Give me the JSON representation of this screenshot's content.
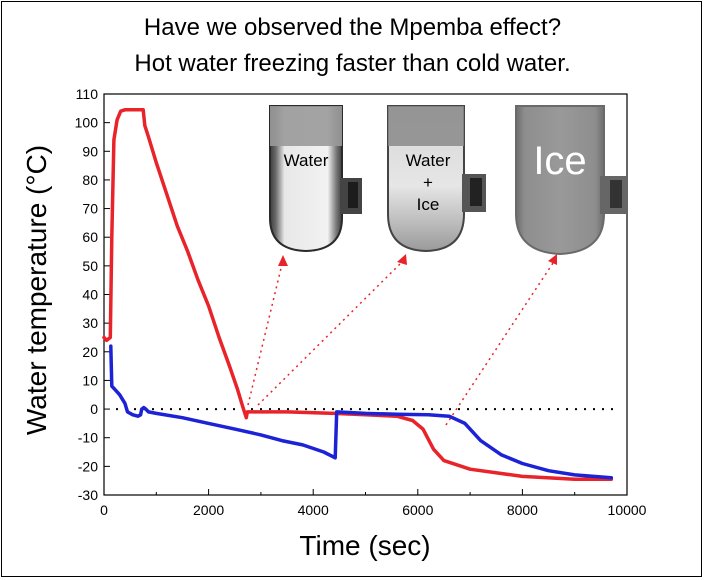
{
  "title_line1": "Have we observed the Mpemba effect?",
  "title_line2": "Hot water freezing faster than cold water.",
  "chart_data": {
    "type": "line",
    "xlabel": "Time (sec)",
    "ylabel": "Water temperature (°C)",
    "xlim": [
      0,
      10000
    ],
    "ylim": [
      -30,
      110
    ],
    "xticks": [
      0,
      2000,
      4000,
      6000,
      8000,
      10000
    ],
    "yticks": [
      -30,
      -20,
      -10,
      0,
      10,
      20,
      30,
      40,
      50,
      60,
      70,
      80,
      90,
      100,
      110
    ],
    "grid": false,
    "reference_line": {
      "y": 0,
      "style": "dotted"
    },
    "series": [
      {
        "color": "#e8232a",
        "points": [
          [
            0,
            25
          ],
          [
            50,
            24
          ],
          [
            120,
            25
          ],
          [
            150,
            60
          ],
          [
            190,
            94
          ],
          [
            250,
            101
          ],
          [
            320,
            104
          ],
          [
            400,
            104.5
          ],
          [
            550,
            104.5
          ],
          [
            750,
            104.5
          ],
          [
            780,
            99
          ],
          [
            850,
            95
          ],
          [
            1000,
            86
          ],
          [
            1200,
            75
          ],
          [
            1400,
            64
          ],
          [
            1600,
            55
          ],
          [
            1800,
            45
          ],
          [
            2000,
            36
          ],
          [
            2200,
            25
          ],
          [
            2400,
            15
          ],
          [
            2550,
            7
          ],
          [
            2650,
            1
          ],
          [
            2720,
            -3
          ],
          [
            2740,
            -1
          ],
          [
            2800,
            -1
          ],
          [
            3500,
            -1
          ],
          [
            4400,
            -1.5
          ],
          [
            5000,
            -2
          ],
          [
            5600,
            -2.5
          ],
          [
            5900,
            -4
          ],
          [
            6100,
            -7
          ],
          [
            6300,
            -14
          ],
          [
            6500,
            -18
          ],
          [
            7000,
            -21
          ],
          [
            8000,
            -23.5
          ],
          [
            9000,
            -24.5
          ],
          [
            9700,
            -24.5
          ]
        ]
      },
      {
        "color": "#1c22d6",
        "points": [
          [
            130,
            22
          ],
          [
            150,
            8
          ],
          [
            200,
            7
          ],
          [
            300,
            5
          ],
          [
            400,
            2
          ],
          [
            450,
            -1
          ],
          [
            550,
            -2
          ],
          [
            650,
            -2.5
          ],
          [
            700,
            -2
          ],
          [
            720,
            0
          ],
          [
            760,
            0.5
          ],
          [
            800,
            0
          ],
          [
            850,
            -1
          ],
          [
            1000,
            -1.5
          ],
          [
            1500,
            -3
          ],
          [
            2000,
            -5
          ],
          [
            2500,
            -7
          ],
          [
            3000,
            -9
          ],
          [
            3400,
            -11
          ],
          [
            3800,
            -12.5
          ],
          [
            4200,
            -15
          ],
          [
            4420,
            -17
          ],
          [
            4450,
            -1
          ],
          [
            5000,
            -1.5
          ],
          [
            5600,
            -1.8
          ],
          [
            6200,
            -2
          ],
          [
            6600,
            -2.5
          ],
          [
            6900,
            -5
          ],
          [
            7200,
            -11
          ],
          [
            7600,
            -16
          ],
          [
            8000,
            -19
          ],
          [
            8500,
            -21.5
          ],
          [
            9000,
            -23
          ],
          [
            9700,
            -24
          ]
        ]
      }
    ]
  },
  "tubes": [
    {
      "label_lines": [
        "Water"
      ],
      "icon": "test-tube-water-photo"
    },
    {
      "label_lines": [
        "Water",
        "+",
        "Ice"
      ],
      "icon": "test-tube-water-ice-photo"
    },
    {
      "label_lines": [
        "Ice"
      ],
      "icon": "test-tube-ice-photo"
    }
  ]
}
